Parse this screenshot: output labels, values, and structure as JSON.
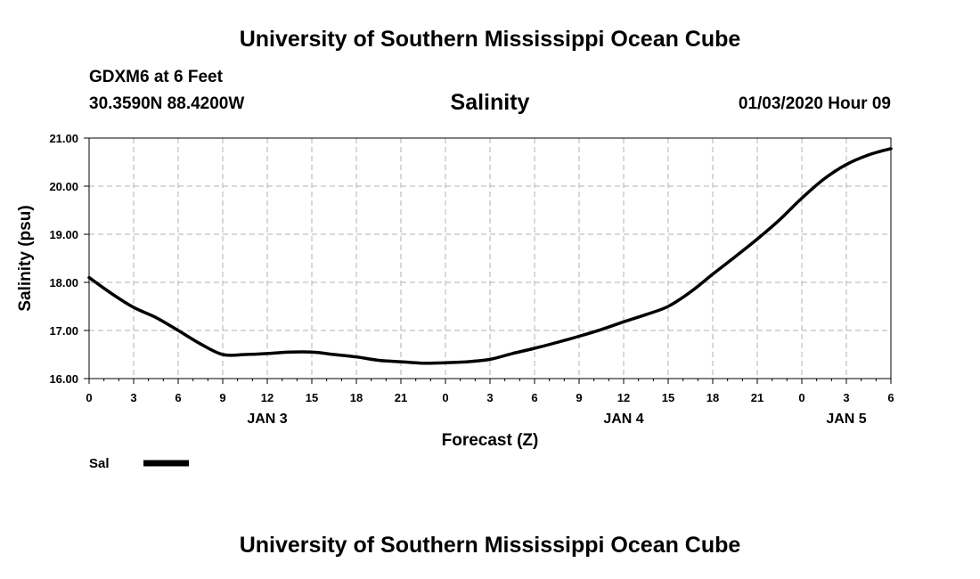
{
  "header": {
    "title_top": "University of Southern Mississippi Ocean Cube",
    "station": "GDXM6 at 6 Feet",
    "coords": "30.3590N 88.4200W",
    "datetime": "01/03/2020 Hour 09"
  },
  "footer": {
    "title_bottom": "University of Southern Mississippi Ocean Cube"
  },
  "chart_data": {
    "type": "line",
    "title": "Salinity",
    "xlabel": "Forecast (Z)",
    "ylabel": "Salinity (psu)",
    "ylim": [
      16.0,
      21.0
    ],
    "xlim": [
      0,
      54
    ],
    "grid": true,
    "y_ticks": [
      "16.00",
      "17.00",
      "18.00",
      "19.00",
      "20.00",
      "21.00"
    ],
    "x_ticks": [
      {
        "value": 0,
        "label": "0"
      },
      {
        "value": 3,
        "label": "3"
      },
      {
        "value": 6,
        "label": "6"
      },
      {
        "value": 9,
        "label": "9"
      },
      {
        "value": 12,
        "label": "12"
      },
      {
        "value": 15,
        "label": "15"
      },
      {
        "value": 18,
        "label": "18"
      },
      {
        "value": 21,
        "label": "21"
      },
      {
        "value": 24,
        "label": "0"
      },
      {
        "value": 27,
        "label": "3"
      },
      {
        "value": 30,
        "label": "6"
      },
      {
        "value": 33,
        "label": "9"
      },
      {
        "value": 36,
        "label": "12"
      },
      {
        "value": 39,
        "label": "15"
      },
      {
        "value": 42,
        "label": "18"
      },
      {
        "value": 45,
        "label": "21"
      },
      {
        "value": 48,
        "label": "0"
      },
      {
        "value": 51,
        "label": "3"
      },
      {
        "value": 54,
        "label": "6"
      }
    ],
    "day_labels": [
      {
        "value": 12,
        "label": "JAN 3"
      },
      {
        "value": 36,
        "label": "JAN 4"
      },
      {
        "value": 51,
        "label": "JAN 5"
      }
    ],
    "legend_position": "bottom-left",
    "series": [
      {
        "name": "Sal",
        "x": [
          0,
          1.5,
          3,
          4.5,
          6,
          7.5,
          9,
          10.5,
          12,
          13.5,
          15,
          16.5,
          18,
          19.5,
          21,
          22.5,
          24,
          25.5,
          27,
          28.5,
          30,
          31.5,
          33,
          34.5,
          36,
          37.5,
          39,
          40.5,
          42,
          43.5,
          45,
          46.5,
          48,
          49.5,
          51,
          52.5,
          54
        ],
        "values": [
          18.1,
          17.77,
          17.48,
          17.27,
          17.0,
          16.72,
          16.5,
          16.5,
          16.52,
          16.55,
          16.55,
          16.5,
          16.45,
          16.38,
          16.35,
          16.32,
          16.33,
          16.35,
          16.4,
          16.52,
          16.63,
          16.75,
          16.88,
          17.02,
          17.18,
          17.33,
          17.5,
          17.8,
          18.17,
          18.53,
          18.9,
          19.3,
          19.75,
          20.15,
          20.45,
          20.65,
          20.78
        ]
      }
    ]
  }
}
